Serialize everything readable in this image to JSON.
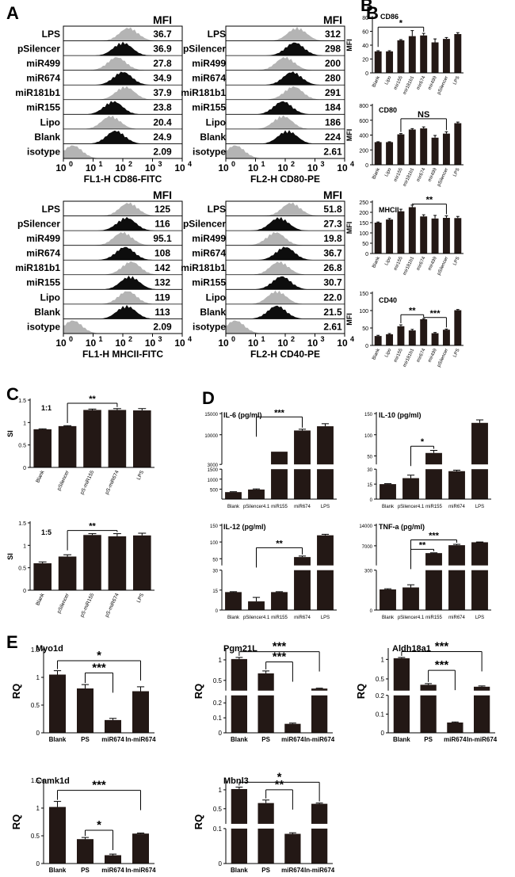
{
  "colors": {
    "bar": "#231815",
    "hist_dark": "#0d0d0d",
    "hist_light": "#b4b4b4",
    "axis": "#000000",
    "text": "#000000"
  },
  "chart_data": [
    {
      "id": "A1",
      "type": "histogram_stack",
      "panel": "A",
      "panel_label": "A",
      "mfi_header": "MFI",
      "xlabel": "FL1-H  CD86-FITC",
      "tick_base": "10",
      "tick_exps": [
        "0",
        "1",
        "2",
        "3",
        "4"
      ],
      "rows": [
        {
          "label": "LPS",
          "mfi": "36.7",
          "shade": "light",
          "peak": 0.55
        },
        {
          "label": "pSilencer",
          "mfi": "36.9",
          "shade": "dark",
          "peak": 0.5
        },
        {
          "label": "miR499",
          "mfi": "27.8",
          "shade": "light",
          "peak": 0.45
        },
        {
          "label": "miR674",
          "mfi": "34.9",
          "shade": "dark",
          "peak": 0.5
        },
        {
          "label": "miR181b1",
          "mfi": "37.9",
          "shade": "light",
          "peak": 0.52
        },
        {
          "label": "miR155",
          "mfi": "23.8",
          "shade": "dark",
          "peak": 0.42
        },
        {
          "label": "Lipo",
          "mfi": "20.4",
          "shade": "light",
          "peak": 0.4
        },
        {
          "label": "Blank",
          "mfi": "24.9",
          "shade": "dark",
          "peak": 0.44
        },
        {
          "label": "isotype",
          "mfi": "2.09",
          "shade": "light",
          "peak": 0.08
        }
      ]
    },
    {
      "id": "A2",
      "type": "histogram_stack",
      "panel": "A",
      "mfi_header": "MFI",
      "xlabel": "FL2-H  CD80-PE",
      "tick_base": "10",
      "tick_exps": [
        "0",
        "1",
        "2",
        "3",
        "4"
      ],
      "rows": [
        {
          "label": "LPS",
          "mfi": "312",
          "shade": "light",
          "peak": 0.6
        },
        {
          "label": "pSilencer",
          "mfi": "298",
          "shade": "dark",
          "peak": 0.58
        },
        {
          "label": "miR499",
          "mfi": "200",
          "shade": "light",
          "peak": 0.5
        },
        {
          "label": "miR674",
          "mfi": "280",
          "shade": "dark",
          "peak": 0.56
        },
        {
          "label": "miR181b1",
          "mfi": "291",
          "shade": "light",
          "peak": 0.57
        },
        {
          "label": "miR155",
          "mfi": "184",
          "shade": "dark",
          "peak": 0.48
        },
        {
          "label": "Lipo",
          "mfi": "186",
          "shade": "light",
          "peak": 0.48
        },
        {
          "label": "Blank",
          "mfi": "224",
          "shade": "dark",
          "peak": 0.52
        },
        {
          "label": "isotype",
          "mfi": "2.61",
          "shade": "light",
          "peak": 0.08
        }
      ]
    },
    {
      "id": "A3",
      "type": "histogram_stack",
      "panel": "A",
      "mfi_header": "MFI",
      "xlabel": "FL1-H  MHCII-FITC",
      "tick_base": "10",
      "tick_exps": [
        "0",
        "1",
        "2",
        "3",
        "4"
      ],
      "rows": [
        {
          "label": "LPS",
          "mfi": "125",
          "shade": "light",
          "peak": 0.55
        },
        {
          "label": "pSilencer",
          "mfi": "116",
          "shade": "dark",
          "peak": 0.53
        },
        {
          "label": "miR499",
          "mfi": "95.1",
          "shade": "light",
          "peak": 0.5
        },
        {
          "label": "miR674",
          "mfi": "108",
          "shade": "dark",
          "peak": 0.52
        },
        {
          "label": "miR181b1",
          "mfi": "142",
          "shade": "light",
          "peak": 0.57
        },
        {
          "label": "miR155",
          "mfi": "132",
          "shade": "dark",
          "peak": 0.56
        },
        {
          "label": "Lipo",
          "mfi": "119",
          "shade": "light",
          "peak": 0.54
        },
        {
          "label": "Blank",
          "mfi": "113",
          "shade": "dark",
          "peak": 0.53
        },
        {
          "label": "isotype",
          "mfi": "2.09",
          "shade": "light",
          "peak": 0.08
        }
      ]
    },
    {
      "id": "A4",
      "type": "histogram_stack",
      "panel": "A",
      "mfi_header": "MFI",
      "xlabel": "FL2-H  CD40-PE",
      "tick_base": "10",
      "tick_exps": [
        "0",
        "1",
        "2",
        "3",
        "4"
      ],
      "rows": [
        {
          "label": "LPS",
          "mfi": "51.8",
          "shade": "light",
          "peak": 0.55
        },
        {
          "label": "pSilencer",
          "mfi": "27.3",
          "shade": "dark",
          "peak": 0.45
        },
        {
          "label": "miR499",
          "mfi": "19.8",
          "shade": "light",
          "peak": 0.42
        },
        {
          "label": "miR674",
          "mfi": "36.7",
          "shade": "dark",
          "peak": 0.5
        },
        {
          "label": "miR181b1",
          "mfi": "26.8",
          "shade": "light",
          "peak": 0.45
        },
        {
          "label": "miR155",
          "mfi": "30.7",
          "shade": "dark",
          "peak": 0.47
        },
        {
          "label": "Lipo",
          "mfi": "22.0",
          "shade": "light",
          "peak": 0.43
        },
        {
          "label": "Blank",
          "mfi": "21.5",
          "shade": "dark",
          "peak": 0.43
        },
        {
          "label": "isotype",
          "mfi": "2.61",
          "shade": "light",
          "peak": 0.08
        }
      ]
    },
    {
      "id": "B1",
      "type": "bar",
      "panel": "B",
      "panel_label": "B",
      "title": "CD86",
      "ylabel": "MFI",
      "ylim": [
        0,
        80
      ],
      "yticks": [
        0,
        20,
        40,
        60,
        80
      ],
      "categories": [
        "Blank",
        "Lipo",
        "mir155",
        "mir181b1",
        "mir674",
        "mir499",
        "pSilencer",
        "LPS"
      ],
      "values": [
        31,
        31,
        47,
        53,
        54,
        44,
        49,
        56
      ],
      "errors": [
        1,
        1,
        1,
        8,
        3,
        5,
        2,
        2
      ],
      "sig": [
        {
          "a": 0,
          "b": 4,
          "text": "*",
          "y": 66
        }
      ]
    },
    {
      "id": "B2",
      "type": "bar",
      "panel": "B",
      "title": "CD80",
      "ylabel": "MFI",
      "ylim": [
        0,
        800
      ],
      "yticks": [
        0,
        200,
        400,
        600,
        800
      ],
      "categories": [
        "Blank",
        "Lipo",
        "mir155",
        "mir181b1",
        "mir674",
        "mir499",
        "pSilencer",
        "LPS"
      ],
      "values": [
        305,
        305,
        410,
        475,
        490,
        365,
        420,
        560
      ],
      "errors": [
        5,
        5,
        10,
        12,
        20,
        30,
        25,
        15
      ],
      "sig": [
        {
          "a": 2,
          "b": 6,
          "text": "NS",
          "y": 620
        }
      ]
    },
    {
      "id": "B3",
      "type": "bar",
      "panel": "B",
      "title": "MHCII",
      "ylabel": "MFI",
      "ylim": [
        0,
        250
      ],
      "yticks": [
        0,
        50,
        100,
        150,
        200,
        250
      ],
      "categories": [
        "Blank",
        "Lipo",
        "mir155",
        "mir181b1",
        "mir674",
        "mir499",
        "pSilencer",
        "LPS"
      ],
      "values": [
        150,
        165,
        205,
        225,
        180,
        170,
        173,
        172
      ],
      "errors": [
        3,
        5,
        10,
        10,
        8,
        15,
        10,
        8
      ],
      "sig": [
        {
          "a": 3,
          "b": 6,
          "text": "**",
          "y": 240
        }
      ]
    },
    {
      "id": "B4",
      "type": "bar",
      "panel": "B",
      "title": "CD40",
      "ylabel": "MFI",
      "ylim": [
        0,
        150
      ],
      "yticks": [
        0,
        50,
        100,
        150
      ],
      "categories": [
        "Blank",
        "Lipo",
        "mir155",
        "mir181b1",
        "mir674",
        "mir499",
        "pSilencer",
        "LPS"
      ],
      "values": [
        27,
        32,
        55,
        43,
        75,
        35,
        45,
        101
      ],
      "errors": [
        2,
        2,
        4,
        3,
        2,
        2,
        2,
        2
      ],
      "sig": [
        {
          "a": 2,
          "b": 4,
          "text": "**",
          "y": 88
        },
        {
          "a": 4,
          "b": 6,
          "text": "***",
          "y": 80
        }
      ]
    },
    {
      "id": "C1",
      "type": "bar",
      "panel": "C",
      "panel_label": "C",
      "title": "1:1",
      "ylabel": "SI",
      "ylim": [
        0,
        1.5
      ],
      "yticks": [
        0.0,
        0.5,
        1.0,
        1.5
      ],
      "categories": [
        "Blank",
        "pSilencer",
        "pS-miR155",
        "pS-miR674",
        "LPS"
      ],
      "values": [
        0.85,
        0.92,
        1.28,
        1.28,
        1.27
      ],
      "errors": [
        0.01,
        0.01,
        0.02,
        0.03,
        0.04
      ],
      "sig": [
        {
          "a": 1,
          "b": 3,
          "text": "**",
          "y": 1.43
        }
      ]
    },
    {
      "id": "C2",
      "type": "bar",
      "panel": "C",
      "title": "1:5",
      "ylabel": "SI",
      "ylim": [
        0,
        1.5
      ],
      "yticks": [
        0.0,
        0.5,
        1.0,
        1.5
      ],
      "categories": [
        "Blank",
        "pSilencer",
        "pS-miR155",
        "pS-miR674",
        "LPS"
      ],
      "values": [
        0.6,
        0.75,
        1.23,
        1.2,
        1.22
      ],
      "errors": [
        0.03,
        0.04,
        0.03,
        0.06,
        0.05
      ],
      "sig": [
        {
          "a": 1,
          "b": 3,
          "text": "**",
          "y": 1.33
        }
      ]
    },
    {
      "id": "D1",
      "type": "bar",
      "panel": "D",
      "panel_label": "D",
      "title": "IL-6 (pg/ml)",
      "broken": true,
      "categories": [
        "Blank",
        "pSilencer4.1",
        "miR155",
        "miR674",
        "LPS"
      ],
      "values": [
        350,
        480,
        6000,
        11000,
        12000
      ],
      "errors": [
        20,
        30,
        0,
        300,
        600
      ],
      "seg_lower": [
        0,
        1500
      ],
      "seg_upper": [
        3000,
        15000
      ],
      "ticks_lower": [
        500,
        1000,
        1500
      ],
      "ticks_upper": [
        3000,
        10000,
        15000
      ],
      "sig": [
        {
          "a": 1,
          "b": 3,
          "text": "***",
          "y": 14200
        }
      ]
    },
    {
      "id": "D2",
      "type": "bar",
      "panel": "D",
      "title": "IL-10 (pg/ml)",
      "broken": true,
      "categories": [
        "Blank",
        "pSilencer4.1",
        "miR155",
        "miR674",
        "LPS"
      ],
      "values": [
        15,
        21,
        57,
        28,
        128
      ],
      "errors": [
        0.5,
        3,
        6,
        1,
        7
      ],
      "seg_lower": [
        0,
        30
      ],
      "seg_upper": [
        30,
        150
      ],
      "ticks_lower": [
        0,
        15,
        30
      ],
      "ticks_upper": [
        50,
        100,
        150
      ],
      "sig": [
        {
          "a": 1,
          "b": 2,
          "text": "*",
          "y": 73
        }
      ]
    },
    {
      "id": "D3",
      "type": "bar",
      "panel": "D",
      "title": "IL-12 (pg/ml)",
      "broken": true,
      "categories": [
        "Blank",
        "pSilencer4.1",
        "miR155",
        "miR674",
        "LPS"
      ],
      "values": [
        13.5,
        6.5,
        13.5,
        55,
        120
      ],
      "errors": [
        0.3,
        3,
        0.3,
        3,
        3
      ],
      "seg_lower": [
        0,
        30
      ],
      "seg_upper": [
        30,
        150
      ],
      "ticks_lower": [
        0,
        15,
        30
      ],
      "ticks_upper": [
        50,
        100,
        150
      ],
      "sig": [
        {
          "a": 1,
          "b": 3,
          "text": "**",
          "y": 83
        }
      ]
    },
    {
      "id": "D4",
      "type": "bar",
      "panel": "D",
      "title": "TNF-a (pg/ml)",
      "broken": true,
      "categories": [
        "Blank",
        "pSilencer4.1",
        "miR155",
        "miR674",
        "LPS"
      ],
      "values": [
        155,
        170,
        4500,
        7200,
        8200
      ],
      "errors": [
        5,
        20,
        100,
        300,
        100
      ],
      "seg_lower": [
        0,
        300
      ],
      "seg_upper": [
        300,
        14000
      ],
      "ticks_lower": [
        0,
        300
      ],
      "ticks_upper": [
        7000,
        14000
      ],
      "sig": [
        {
          "a": 1,
          "b": 2,
          "text": "**",
          "y": 5800
        },
        {
          "a": 1,
          "b": 3,
          "text": "***",
          "y": 9000
        }
      ]
    },
    {
      "id": "E1",
      "type": "bar",
      "panel": "E",
      "panel_label": "E",
      "title": "Myo1d",
      "ylabel": "RQ",
      "ylim": [
        0,
        1.5
      ],
      "yticks": [
        0.0,
        0.5,
        1.0,
        1.5
      ],
      "categories": [
        "Blank",
        "PS",
        "miR674",
        "In-miR674"
      ],
      "values": [
        1.05,
        0.8,
        0.23,
        0.75
      ],
      "errors": [
        0.07,
        0.07,
        0.03,
        0.08
      ],
      "sig": [
        {
          "a": 0,
          "b": 3,
          "text": "*",
          "y": 1.3
        },
        {
          "a": 1,
          "b": 2,
          "text": "***",
          "y": 1.08
        }
      ]
    },
    {
      "id": "E2",
      "type": "bar",
      "panel": "E",
      "title": "Pgm21L",
      "ylabel": "RQ",
      "broken": true,
      "categories": [
        "Blank",
        "PS",
        "miR674",
        "In-miR674"
      ],
      "values": [
        1.02,
        0.67,
        0.06,
        0.3
      ],
      "errors": [
        0.04,
        0.06,
        0.005,
        0.01
      ],
      "seg_lower": [
        0,
        0.25
      ],
      "seg_upper": [
        0.25,
        1.25
      ],
      "ticks_lower": [
        0.0,
        0.1,
        0.2
      ],
      "ticks_upper": [
        0.5,
        1.0
      ],
      "sig": [
        {
          "a": 0,
          "b": 3,
          "text": "***",
          "y": 1.2
        },
        {
          "a": 1,
          "b": 2,
          "text": "***",
          "y": 0.95
        }
      ]
    },
    {
      "id": "E3",
      "type": "bar",
      "panel": "E",
      "title": "Aldh18a1",
      "ylabel": "RQ",
      "broken": true,
      "categories": [
        "Blank",
        "PS",
        "miR674",
        "In-miR674"
      ],
      "values": [
        1.03,
        0.35,
        0.055,
        0.3
      ],
      "errors": [
        0.02,
        0.03,
        0.003,
        0.02
      ],
      "seg_lower": [
        0,
        0.2
      ],
      "seg_upper": [
        0.2,
        1.25
      ],
      "ticks_lower": [
        0.0,
        0.1,
        0.2
      ],
      "ticks_upper": [
        0.5,
        1.0
      ],
      "sig": [
        {
          "a": 0,
          "b": 3,
          "text": "***",
          "y": 1.2
        },
        {
          "a": 1,
          "b": 2,
          "text": "***",
          "y": 0.72
        }
      ]
    },
    {
      "id": "E4",
      "type": "bar",
      "panel": "E",
      "title": "Camk1d",
      "ylabel": "RQ",
      "ylim": [
        0,
        1.5
      ],
      "yticks": [
        0.0,
        0.5,
        1.0,
        1.5
      ],
      "categories": [
        "Blank",
        "PS",
        "miR674",
        "In-miR674"
      ],
      "values": [
        1.02,
        0.44,
        0.15,
        0.54
      ],
      "errors": [
        0.1,
        0.03,
        0.02,
        0.01
      ],
      "sig": [
        {
          "a": 0,
          "b": 3,
          "text": "***",
          "y": 1.32
        },
        {
          "a": 1,
          "b": 2,
          "text": "*",
          "y": 0.6
        }
      ]
    },
    {
      "id": "E5",
      "type": "bar",
      "panel": "E",
      "title": "Mbnl3",
      "ylabel": "RQ",
      "broken": true,
      "categories": [
        "Blank",
        "PS",
        "miR674",
        "In-miR674"
      ],
      "values": [
        1.02,
        0.65,
        0.085,
        0.63
      ],
      "errors": [
        0.05,
        0.08,
        0.003,
        0.02
      ],
      "seg_lower": [
        0,
        0.1
      ],
      "seg_upper": [
        0.1,
        1.25
      ],
      "ticks_lower": [
        0.0,
        0.1
      ],
      "ticks_upper": [
        0.5,
        1.0
      ],
      "sig": [
        {
          "a": 0,
          "b": 3,
          "text": "*",
          "y": 1.2
        },
        {
          "a": 1,
          "b": 2,
          "text": "**",
          "y": 1.0
        }
      ]
    }
  ]
}
